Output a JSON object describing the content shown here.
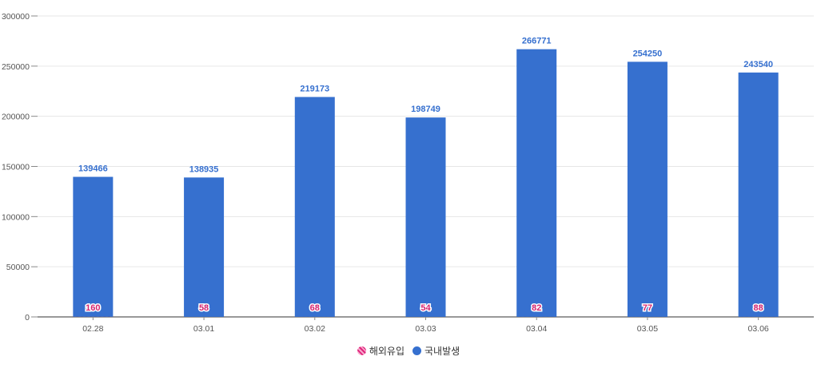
{
  "chart_data": {
    "type": "bar",
    "categories": [
      "02.28",
      "03.01",
      "03.02",
      "03.03",
      "03.04",
      "03.05",
      "03.06"
    ],
    "series": [
      {
        "name": "해외유입",
        "values": [
          160,
          58,
          68,
          54,
          82,
          77,
          88
        ],
        "color": "#e0267d"
      },
      {
        "name": "국내발생",
        "values": [
          139466,
          138935,
          219173,
          198749,
          266771,
          254250,
          243540
        ],
        "color": "#3670cf"
      }
    ],
    "stacked": true,
    "ylim": [
      0,
      300000
    ],
    "yticks": [
      0,
      50000,
      100000,
      150000,
      200000,
      250000,
      300000
    ],
    "grid": true,
    "legend_position": "bottom",
    "title": "",
    "xlabel": "",
    "ylabel": ""
  },
  "legend": {
    "items": [
      {
        "label": "해외유입",
        "icon": "hatched-circle-icon"
      },
      {
        "label": "국내발생",
        "icon": "circle-icon"
      }
    ]
  }
}
